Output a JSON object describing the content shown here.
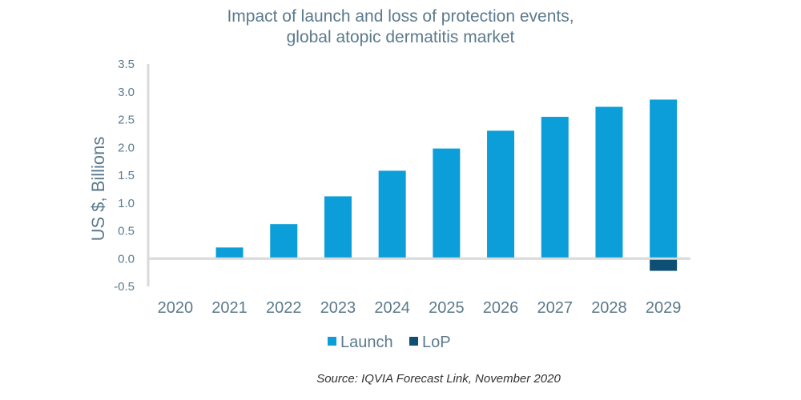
{
  "chart_data": {
    "type": "bar",
    "title_lines": [
      "Impact of launch and loss of protection events,",
      "global atopic dermatitis market"
    ],
    "ylabel": "US $, Billions",
    "xlabel": "",
    "categories": [
      "2020",
      "2021",
      "2022",
      "2023",
      "2024",
      "2025",
      "2026",
      "2027",
      "2028",
      "2029"
    ],
    "series": [
      {
        "name": "Launch",
        "color": "#0b9ed8",
        "values": [
          0,
          0.2,
          0.62,
          1.12,
          1.58,
          1.98,
          2.3,
          2.55,
          2.73,
          2.86
        ]
      },
      {
        "name": "LoP",
        "color": "#0e4f74",
        "values": [
          0,
          0,
          0,
          0,
          0,
          0,
          0,
          0,
          0,
          -0.22
        ]
      }
    ],
    "ylim": [
      -0.5,
      3.5
    ],
    "yticks": [
      "-0.5",
      "0.0",
      "0.5",
      "1.0",
      "1.5",
      "2.0",
      "2.5",
      "3.0",
      "3.5"
    ],
    "ytick_values": [
      -0.5,
      0,
      0.5,
      1,
      1.5,
      2,
      2.5,
      3,
      3.5
    ],
    "grid": false,
    "legend_position": "bottom",
    "stacked": true,
    "source": "Source: IQVIA Forecast Link, November 2020"
  }
}
